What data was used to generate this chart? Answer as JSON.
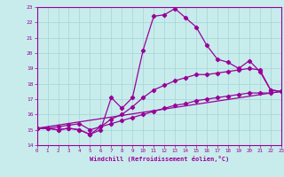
{
  "xlabel": "Windchill (Refroidissement éolien,°C)",
  "xlim": [
    0,
    23
  ],
  "ylim": [
    14,
    23
  ],
  "xticks": [
    0,
    1,
    2,
    3,
    4,
    5,
    6,
    7,
    8,
    9,
    10,
    11,
    12,
    13,
    14,
    15,
    16,
    17,
    18,
    19,
    20,
    21,
    22,
    23
  ],
  "yticks": [
    14,
    15,
    16,
    17,
    18,
    19,
    20,
    21,
    22,
    23
  ],
  "background_color": "#c8ecec",
  "grid_color": "#a8d8d8",
  "line_color": "#990099",
  "curve1_x": [
    0,
    1,
    2,
    3,
    4,
    5,
    6,
    7,
    8,
    9,
    10,
    11,
    12,
    13,
    14,
    15,
    16,
    17,
    18,
    19,
    20,
    21,
    22,
    23
  ],
  "curve1_y": [
    15.1,
    15.1,
    15.0,
    15.1,
    15.0,
    14.7,
    15.0,
    17.1,
    16.4,
    17.1,
    20.2,
    22.4,
    22.5,
    22.9,
    22.3,
    21.7,
    20.5,
    19.6,
    19.4,
    19.0,
    19.5,
    18.8,
    17.6,
    17.5
  ],
  "curve2_x": [
    0,
    1,
    2,
    3,
    4,
    5,
    6,
    7,
    8,
    9,
    10,
    11,
    12,
    13,
    14,
    15,
    16,
    17,
    18,
    19,
    20,
    21,
    22,
    23
  ],
  "curve2_y": [
    15.1,
    15.1,
    15.0,
    15.1,
    15.0,
    14.7,
    15.2,
    15.7,
    16.0,
    16.5,
    17.1,
    17.6,
    17.9,
    18.2,
    18.4,
    18.6,
    18.6,
    18.7,
    18.8,
    18.9,
    19.0,
    18.9,
    17.6,
    17.5
  ],
  "curve3_x": [
    0,
    1,
    2,
    3,
    4,
    5,
    6,
    7,
    8,
    9,
    10,
    11,
    12,
    13,
    14,
    15,
    16,
    17,
    18,
    19,
    20,
    21,
    22,
    23
  ],
  "curve3_y": [
    15.1,
    15.1,
    15.2,
    15.3,
    15.4,
    15.0,
    15.2,
    15.4,
    15.6,
    15.8,
    16.0,
    16.2,
    16.4,
    16.6,
    16.7,
    16.9,
    17.0,
    17.1,
    17.2,
    17.3,
    17.4,
    17.4,
    17.4,
    17.5
  ],
  "line4_x": [
    0,
    23
  ],
  "line4_y": [
    15.1,
    17.5
  ]
}
